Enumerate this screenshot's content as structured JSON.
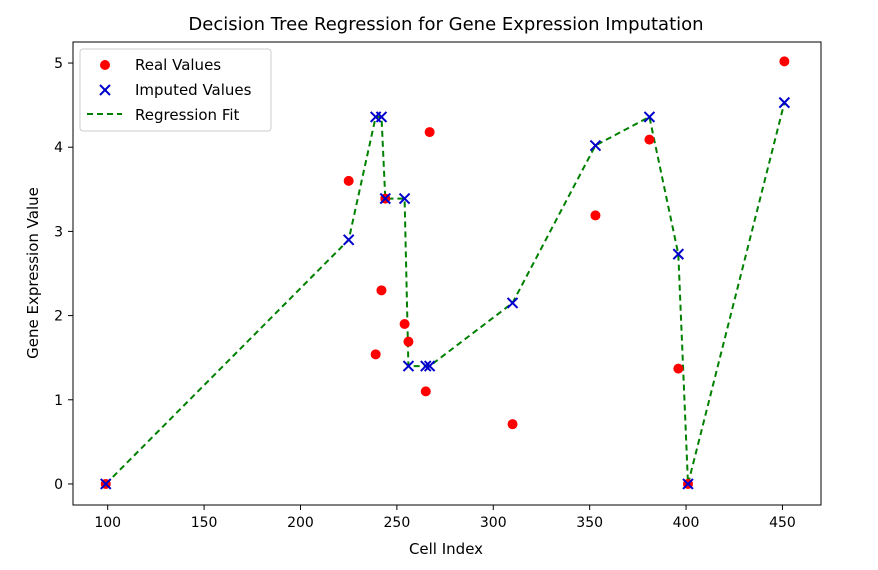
{
  "chart_data": {
    "type": "scatter",
    "title": "Decision Tree Regression for Gene Expression Imputation",
    "xlabel": "Cell Index",
    "ylabel": "Gene Expression Value",
    "xlim": [
      82,
      470
    ],
    "ylim": [
      -0.25,
      5.25
    ],
    "xticks": [
      100,
      150,
      200,
      250,
      300,
      350,
      400,
      450
    ],
    "yticks": [
      0,
      1,
      2,
      3,
      4,
      5
    ],
    "grid": false,
    "legend_position": "upper-left",
    "series": [
      {
        "name": "Real Values",
        "kind": "scatter",
        "marker": "circle",
        "color": "#ff0000",
        "points": [
          [
            99,
            0.0
          ],
          [
            225,
            3.6
          ],
          [
            239,
            1.54
          ],
          [
            242,
            2.3
          ],
          [
            244,
            3.39
          ],
          [
            254,
            1.9
          ],
          [
            256,
            1.69
          ],
          [
            265,
            1.1
          ],
          [
            267,
            4.18
          ],
          [
            310,
            0.71
          ],
          [
            353,
            3.19
          ],
          [
            381,
            4.09
          ],
          [
            396,
            1.37
          ],
          [
            401,
            0.0
          ],
          [
            451,
            5.02
          ]
        ]
      },
      {
        "name": "Imputed Values",
        "kind": "scatter",
        "marker": "x",
        "color": "#0000cc",
        "points": [
          [
            99,
            0.0
          ],
          [
            225,
            2.9
          ],
          [
            239,
            4.36
          ],
          [
            242,
            4.36
          ],
          [
            244,
            3.39
          ],
          [
            254,
            3.39
          ],
          [
            256,
            1.4
          ],
          [
            265,
            1.4
          ],
          [
            267,
            1.4
          ],
          [
            310,
            2.15
          ],
          [
            353,
            4.02
          ],
          [
            381,
            4.36
          ],
          [
            396,
            2.73
          ],
          [
            401,
            0.0
          ],
          [
            451,
            4.53
          ]
        ]
      },
      {
        "name": "Regression Fit",
        "kind": "line",
        "style": "dashed",
        "color": "#008000",
        "points": [
          [
            99,
            0.0
          ],
          [
            225,
            2.9
          ],
          [
            239,
            4.36
          ],
          [
            242,
            4.36
          ],
          [
            244,
            3.39
          ],
          [
            254,
            3.39
          ],
          [
            256,
            1.4
          ],
          [
            265,
            1.4
          ],
          [
            267,
            1.4
          ],
          [
            310,
            2.15
          ],
          [
            353,
            4.02
          ],
          [
            381,
            4.36
          ],
          [
            396,
            2.73
          ],
          [
            401,
            0.0
          ],
          [
            451,
            4.53
          ]
        ]
      }
    ]
  }
}
